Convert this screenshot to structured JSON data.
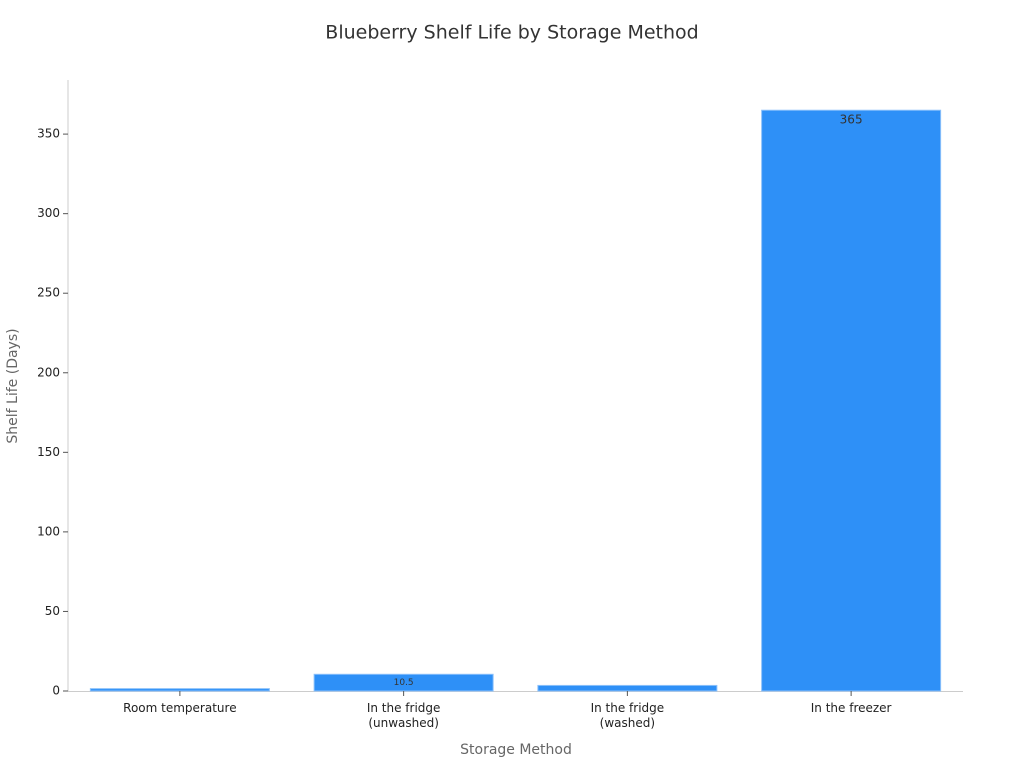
{
  "chart_data": {
    "type": "bar",
    "title": "Blueberry Shelf Life by Storage Method",
    "x_label": "Storage Method",
    "y_label": "Shelf Life (Days)",
    "categories": [
      "Room temperature",
      "In the fridge\n(unwashed)",
      "In the fridge\n(washed)",
      "In the freezer"
    ],
    "values": [
      1.5,
      10.5,
      3.5,
      365
    ],
    "value_labels": [
      null,
      "10.5",
      null,
      "365"
    ],
    "color": "#2e90f7",
    "ylim": [
      0,
      384
    ],
    "yticks": [
      0,
      50,
      100,
      150,
      200,
      250,
      300,
      350
    ],
    "grid": false
  }
}
